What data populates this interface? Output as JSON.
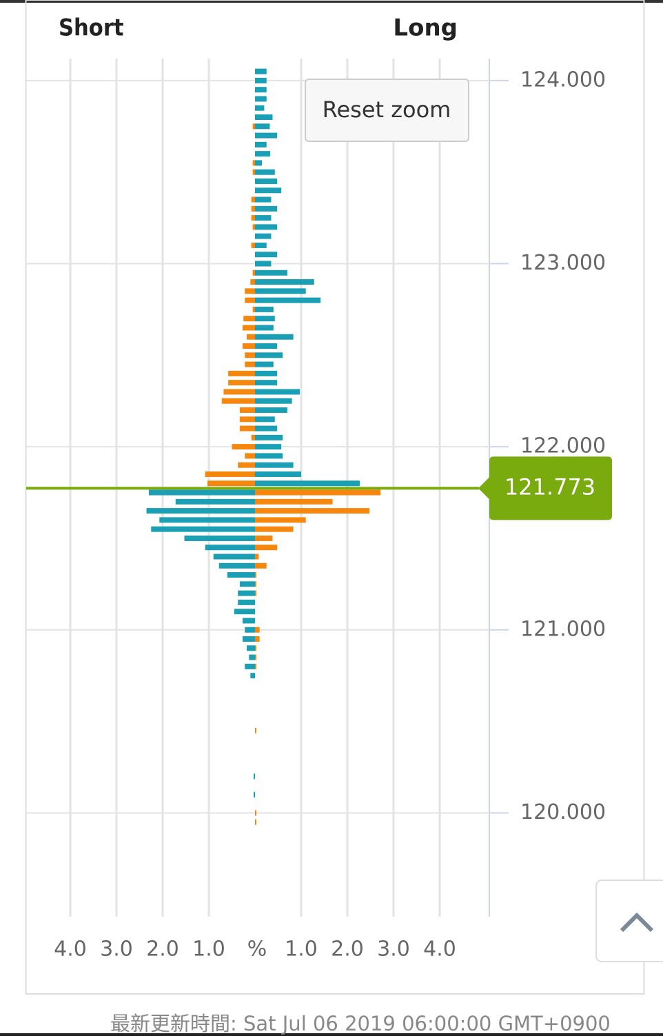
{
  "chart_data": {
    "type": "butterfly-bar",
    "short_label": "Short",
    "long_label": "Long",
    "x_label": "%",
    "y": [
      124.05,
      124.0,
      123.95,
      123.9,
      123.85,
      123.8,
      123.75,
      123.7,
      123.65,
      123.6,
      123.55,
      123.5,
      123.45,
      123.4,
      123.35,
      123.3,
      123.25,
      123.2,
      123.15,
      123.1,
      123.05,
      123.0,
      122.95,
      122.9,
      122.85,
      122.8,
      122.75,
      122.7,
      122.65,
      122.6,
      122.55,
      122.5,
      122.45,
      122.4,
      122.35,
      122.3,
      122.25,
      122.2,
      122.15,
      122.1,
      122.05,
      122.0,
      121.95,
      121.9,
      121.85,
      121.8,
      121.75,
      121.7,
      121.65,
      121.6,
      121.55,
      121.5,
      121.45,
      121.4,
      121.35,
      121.3,
      121.25,
      121.2,
      121.15,
      121.1,
      121.05,
      121.0,
      120.95,
      120.9,
      120.85,
      120.8,
      120.75,
      120.45,
      120.2,
      120.1,
      120.0,
      119.95
    ],
    "series": [
      {
        "name": "Short",
        "side": "left",
        "color_above": "#f5870f",
        "color_below": "#1a9fb5",
        "values": [
          0,
          0,
          0,
          0,
          0,
          0,
          0.05,
          0,
          0,
          0,
          0.05,
          0.05,
          0,
          0,
          0.08,
          0.08,
          0.08,
          0.05,
          0,
          0.08,
          0,
          0,
          0.05,
          0.1,
          0.22,
          0.22,
          0.05,
          0.25,
          0.27,
          0.18,
          0.27,
          0.22,
          0.22,
          0.58,
          0.58,
          0.68,
          0.72,
          0.33,
          0.33,
          0.33,
          0.08,
          0.5,
          0.22,
          0.37,
          1.08,
          1.03,
          2.3,
          1.72,
          2.35,
          2.07,
          2.25,
          1.53,
          1.08,
          0.9,
          0.78,
          0.6,
          0.33,
          0.37,
          0.37,
          0.45,
          0.27,
          0.22,
          0.27,
          0.18,
          0.13,
          0.22,
          0.1,
          0,
          0.03,
          0.03,
          0,
          0
        ]
      },
      {
        "name": "Long",
        "side": "right",
        "color_above": "#1a9fb5",
        "color_below": "#f5870f",
        "values": [
          0.25,
          0.25,
          0.25,
          0.25,
          0.2,
          0.38,
          0.32,
          0.48,
          0.25,
          0.33,
          0.15,
          0.43,
          0.48,
          0.57,
          0.35,
          0.48,
          0.35,
          0.48,
          0.35,
          0.25,
          0.48,
          0.35,
          0.7,
          1.28,
          1.1,
          1.42,
          0.4,
          0.43,
          0.4,
          0.83,
          0.48,
          0.6,
          0.4,
          0.48,
          0.48,
          0.97,
          0.8,
          0.7,
          0.43,
          0.48,
          0.6,
          0.57,
          0.6,
          0.83,
          1.0,
          2.27,
          2.72,
          1.68,
          2.48,
          1.1,
          0.83,
          0.38,
          0.48,
          0.08,
          0.25,
          0.03,
          0.03,
          0.03,
          0,
          0,
          0,
          0.1,
          0.1,
          0.03,
          0.03,
          0.03,
          0,
          0.03,
          0,
          0,
          0.03,
          0.03
        ]
      }
    ],
    "current_price": 121.773,
    "current_price_color": "#7aab0e",
    "xlim": [
      0,
      5
    ],
    "xticks_short": [
      {
        "value": 4,
        "label": "4.0"
      },
      {
        "value": 3,
        "label": "3.0"
      },
      {
        "value": 2,
        "label": "2.0"
      },
      {
        "value": 1,
        "label": "1.0"
      }
    ],
    "xticks_long": [
      {
        "value": 1,
        "label": "1.0"
      },
      {
        "value": 2,
        "label": "2.0"
      },
      {
        "value": 3,
        "label": "3.0"
      },
      {
        "value": 4,
        "label": "4.0"
      }
    ],
    "ylim": [
      119.433,
      124.12
    ],
    "yticks": [
      {
        "value": 124,
        "label": "124.000"
      },
      {
        "value": 123,
        "label": "123.000"
      },
      {
        "value": 122,
        "label": "122.000"
      },
      {
        "value": 121,
        "label": "121.000"
      },
      {
        "value": 120,
        "label": "120.000"
      }
    ],
    "grid": true
  },
  "ui": {
    "reset_zoom": "Reset zoom",
    "footer": "最新更新時間: Sat Jul 06 2019 06:00:00 GMT+0900"
  }
}
